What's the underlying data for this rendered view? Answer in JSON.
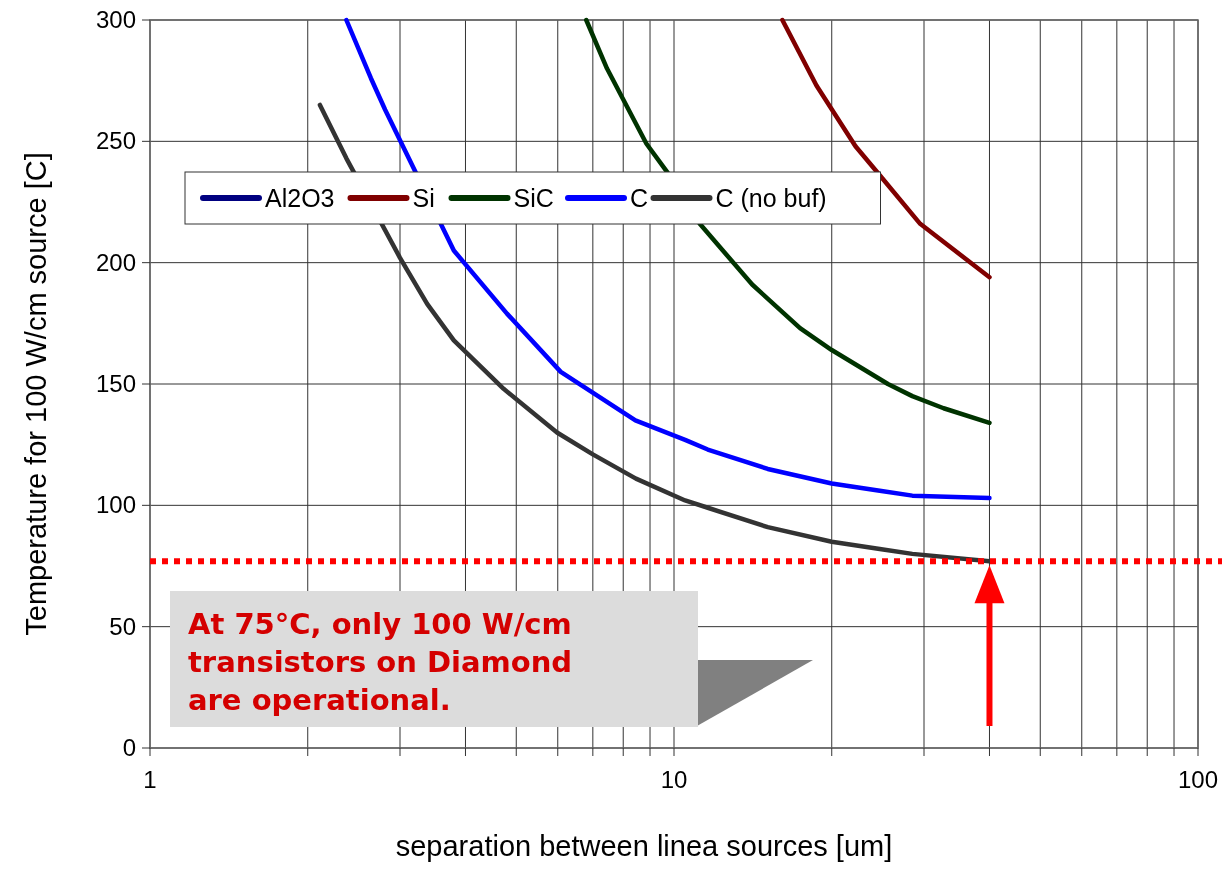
{
  "chart_data": {
    "type": "line",
    "xlabel": "separation between linea sources [um]",
    "ylabel": "Temperature for 100 W/cm source [C]",
    "log": "x",
    "xlim": [
      1,
      100
    ],
    "ylim": [
      0,
      300
    ],
    "xticks": [
      1,
      {
        "value": 2,
        "label": null
      },
      {
        "value": 3,
        "label": null
      },
      {
        "value": 4,
        "label": null
      },
      {
        "value": 5,
        "label": null
      },
      {
        "value": 6,
        "label": null
      },
      {
        "value": 7,
        "label": null
      },
      {
        "value": 8,
        "label": null
      },
      {
        "value": 9,
        "label": null
      },
      10,
      {
        "value": 20,
        "label": null
      },
      {
        "value": 30,
        "label": null
      },
      {
        "value": 40,
        "label": null
      },
      {
        "value": 50,
        "label": null
      },
      {
        "value": 60,
        "label": null
      },
      {
        "value": 70,
        "label": null
      },
      {
        "value": 80,
        "label": null
      },
      {
        "value": 90,
        "label": null
      },
      100
    ],
    "yticks": [
      0,
      50,
      100,
      150,
      200,
      250,
      300
    ],
    "grid": true,
    "legend": "top",
    "marker": "none",
    "line_style": "solid",
    "series": [
      {
        "name": "Al2O3",
        "color": "#000080"
      },
      {
        "name": "Si",
        "color": "#800000",
        "x": [
          16.1,
          18.7,
          22.2,
          24.7,
          29.5,
          40
        ],
        "values": [
          300,
          273,
          248,
          236,
          216,
          194
        ]
      },
      {
        "name": "SiC",
        "color": "#003300",
        "x": [
          6.8,
          7.45,
          8.86,
          9.73,
          11.2,
          14.1,
          17.4,
          20,
          25.6,
          28.5,
          32.7,
          40
        ],
        "values": [
          300,
          280,
          249,
          237,
          216,
          191,
          173,
          164,
          150,
          145,
          140,
          134
        ]
      },
      {
        "name": "C",
        "color": "#0000ff",
        "x": [
          2.37,
          2.64,
          2.81,
          3.8,
          4.8,
          6.08,
          8.44,
          10.5,
          11.6,
          15.1,
          20,
          24.7,
          28.5,
          40
        ],
        "values": [
          300,
          276,
          263,
          205,
          179,
          155,
          135,
          127,
          123,
          115,
          109,
          106,
          104,
          103
        ]
      },
      {
        "name": "C (no buf)",
        "color": "#333333",
        "x": [
          2.11,
          2.37,
          3,
          3.38,
          3.8,
          4.73,
          5.98,
          7,
          8.46,
          10.5,
          11.6,
          15.1,
          20,
          24.7,
          28.5,
          40
        ],
        "values": [
          265,
          243,
          202,
          183,
          168,
          148,
          130,
          121,
          111,
          102,
          99,
          91,
          85,
          82,
          80,
          77
        ]
      }
    ],
    "ref_lines": [
      {
        "axis": "y",
        "value": 77,
        "color": "#ff0000",
        "line_style": "dotted"
      }
    ],
    "annotations": [
      "At 75°C, only 100 W/cm\ntransistors on Diamond\nare operational."
    ]
  }
}
